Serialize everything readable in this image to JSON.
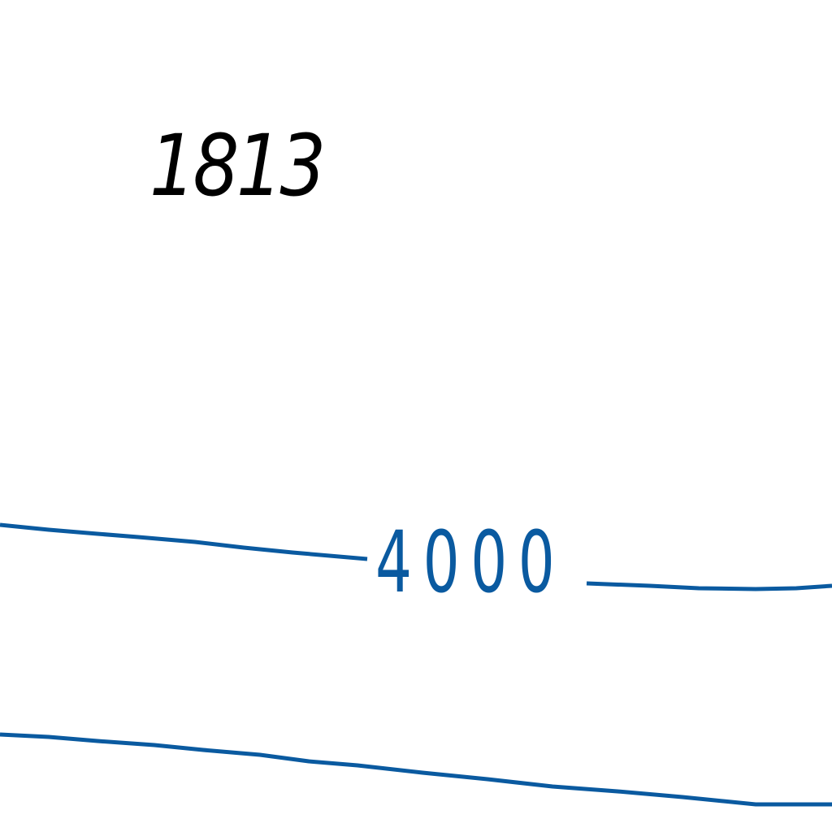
{
  "map": {
    "spot_height": "1813",
    "contour_label": "4000",
    "colors": {
      "contour": "#0a5aa0",
      "spot_height_text": "#000000",
      "background": "#ffffff"
    }
  }
}
